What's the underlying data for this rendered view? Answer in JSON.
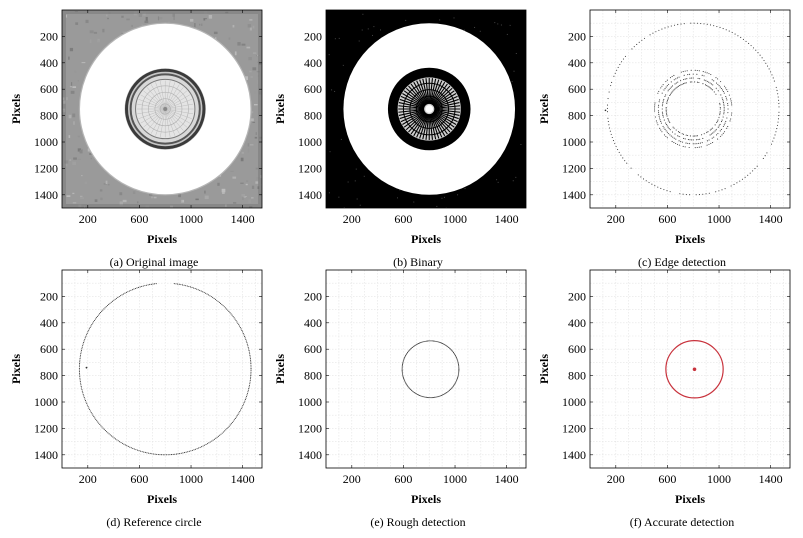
{
  "figure": {
    "panels": [
      {
        "id": "a",
        "caption": "(a) Original image",
        "xlabel": "Pixels",
        "ylabel": "Pixels",
        "render": "original",
        "has_grid": false
      },
      {
        "id": "b",
        "caption": "(b) Binary",
        "xlabel": "Pixels",
        "ylabel": "Pixels",
        "render": "binary",
        "has_grid": false
      },
      {
        "id": "c",
        "caption": "(c) Edge detection",
        "xlabel": "Pixels",
        "ylabel": "Pixels",
        "render": "edges",
        "has_grid": true
      },
      {
        "id": "d",
        "caption": "(d) Reference circle",
        "xlabel": "Pixels",
        "ylabel": "Pixels",
        "render": "reference",
        "has_grid": true
      },
      {
        "id": "e",
        "caption": "(e) Rough detection",
        "xlabel": "Pixels",
        "ylabel": "Pixels",
        "render": "rough",
        "has_grid": true
      },
      {
        "id": "f",
        "caption": "(f) Accurate detection",
        "xlabel": "Pixels",
        "ylabel": "Pixels",
        "render": "accurate",
        "has_grid": true
      }
    ],
    "axes": {
      "x_range": [
        0,
        1550
      ],
      "y_range": [
        0,
        1500
      ],
      "y_inverted": true,
      "x_ticks": [
        200,
        600,
        1000,
        1400
      ],
      "y_ticks": [
        200,
        400,
        600,
        800,
        1000,
        1200,
        1400
      ]
    },
    "circles": {
      "reference": {
        "cx": 800,
        "cy": 750,
        "r": 665
      },
      "rough": {
        "cx": 810,
        "cy": 752,
        "r": 220
      },
      "accurate": {
        "cx": 810,
        "cy": 752,
        "r": 222
      }
    },
    "colors": {
      "accurate_circle": "#c8323c",
      "accurate_center": "#c8323c",
      "edge_points": "#333333"
    }
  }
}
